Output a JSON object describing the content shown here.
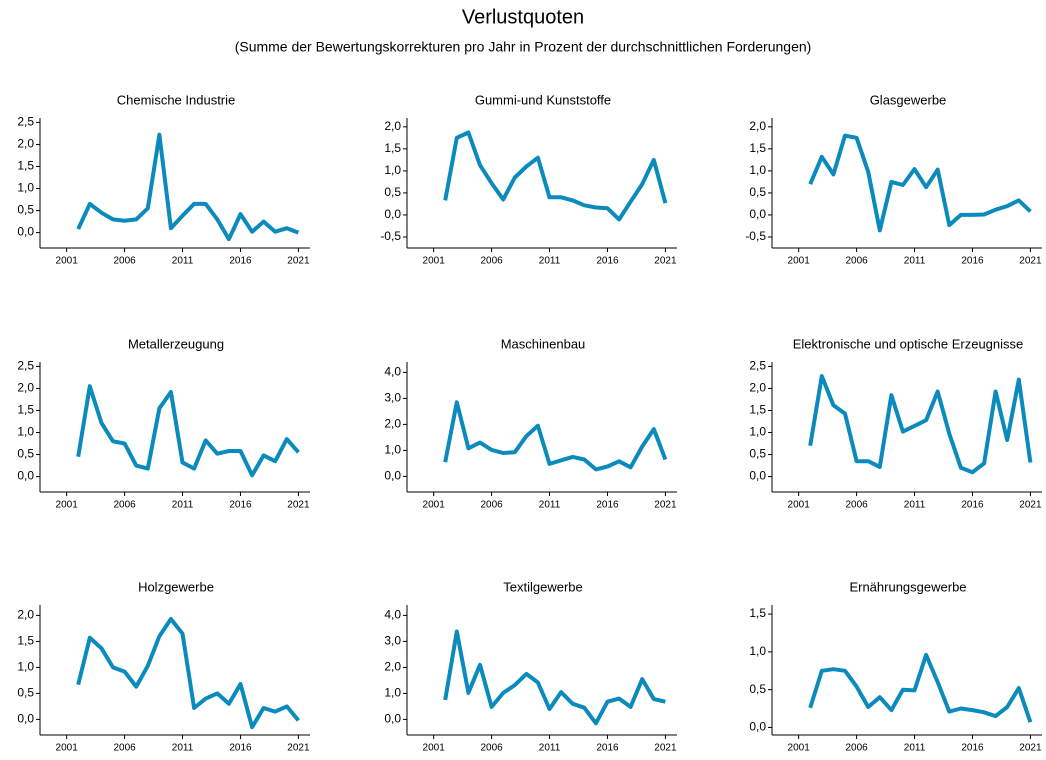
{
  "title": "Verlustquoten",
  "subtitle": "(Summe der Bewertungskorrekturen pro Jahr in Prozent der durchschnittlichen Forderungen)",
  "chart_data": [
    {
      "type": "line",
      "title": "Chemische Industrie",
      "color": "#0a8abd",
      "x": [
        2002,
        2003,
        2004,
        2005,
        2006,
        2007,
        2008,
        2009,
        2010,
        2011,
        2012,
        2013,
        2014,
        2015,
        2016,
        2017,
        2018,
        2019,
        2020,
        2021
      ],
      "values": [
        0.08,
        0.65,
        0.45,
        0.3,
        0.27,
        0.3,
        0.55,
        2.22,
        0.1,
        0.38,
        0.65,
        0.65,
        0.3,
        -0.15,
        0.42,
        0.02,
        0.25,
        0.02,
        0.1,
        0.0
      ],
      "xlim": [
        1998.7,
        2022.0
      ],
      "xticks": [
        2001,
        2006,
        2011,
        2016,
        2021
      ],
      "ylim": [
        -0.35,
        2.6
      ],
      "yticks": [
        {
          "value": 0,
          "label": "0,0"
        },
        {
          "value": 0.5,
          "label": "0,5"
        },
        {
          "value": 1,
          "label": "1,0"
        },
        {
          "value": 1.5,
          "label": "1,5"
        },
        {
          "value": 2,
          "label": "2,0"
        },
        {
          "value": 2.5,
          "label": "2,5"
        }
      ]
    },
    {
      "type": "line",
      "title": "Gummi-und Kunststoffe",
      "color": "#0a8abd",
      "x": [
        2002,
        2003,
        2004,
        2005,
        2006,
        2007,
        2008,
        2009,
        2010,
        2011,
        2012,
        2013,
        2014,
        2015,
        2016,
        2017,
        2018,
        2019,
        2020,
        2021
      ],
      "values": [
        0.33,
        1.75,
        1.87,
        1.13,
        0.72,
        0.35,
        0.85,
        1.1,
        1.3,
        0.4,
        0.4,
        0.33,
        0.22,
        0.17,
        0.15,
        -0.1,
        0.3,
        0.7,
        1.25,
        0.27
      ],
      "xlim": [
        1998.7,
        2022.0
      ],
      "xticks": [
        2001,
        2006,
        2011,
        2016,
        2021
      ],
      "ylim": [
        -0.75,
        2.2
      ],
      "yticks": [
        {
          "value": -0.5,
          "label": "-0,5"
        },
        {
          "value": 0,
          "label": "0,0"
        },
        {
          "value": 0.5,
          "label": "0,5"
        },
        {
          "value": 1,
          "label": "1,0"
        },
        {
          "value": 1.5,
          "label": "1,5"
        },
        {
          "value": 2,
          "label": "2,0"
        }
      ]
    },
    {
      "type": "line",
      "title": "Glasgewerbe",
      "color": "#0a8abd",
      "x": [
        2002,
        2003,
        2004,
        2005,
        2006,
        2007,
        2008,
        2009,
        2010,
        2011,
        2012,
        2013,
        2014,
        2015,
        2016,
        2017,
        2018,
        2019,
        2020,
        2021
      ],
      "values": [
        0.7,
        1.32,
        0.92,
        1.8,
        1.75,
        0.98,
        -0.35,
        0.75,
        0.68,
        1.04,
        0.63,
        1.03,
        -0.23,
        0.0,
        0.0,
        0.01,
        0.12,
        0.2,
        0.33,
        0.08
      ],
      "xlim": [
        1998.7,
        2022.0
      ],
      "xticks": [
        2001,
        2006,
        2011,
        2016,
        2021
      ],
      "ylim": [
        -0.75,
        2.2
      ],
      "yticks": [
        {
          "value": -0.5,
          "label": "-0,5"
        },
        {
          "value": 0,
          "label": "0,0"
        },
        {
          "value": 0.5,
          "label": "0,5"
        },
        {
          "value": 1,
          "label": "1,0"
        },
        {
          "value": 1.5,
          "label": "1,5"
        },
        {
          "value": 2,
          "label": "2,0"
        }
      ]
    },
    {
      "type": "line",
      "title": "Metallerzeugung",
      "color": "#0a8abd",
      "x": [
        2002,
        2003,
        2004,
        2005,
        2006,
        2007,
        2008,
        2009,
        2010,
        2011,
        2012,
        2013,
        2014,
        2015,
        2016,
        2017,
        2018,
        2019,
        2020,
        2021
      ],
      "values": [
        0.45,
        2.05,
        1.22,
        0.8,
        0.75,
        0.25,
        0.18,
        1.55,
        1.92,
        0.32,
        0.18,
        0.82,
        0.52,
        0.58,
        0.58,
        0.03,
        0.48,
        0.35,
        0.85,
        0.55
      ],
      "xlim": [
        1998.7,
        2022.0
      ],
      "xticks": [
        2001,
        2006,
        2011,
        2016,
        2021
      ],
      "ylim": [
        -0.35,
        2.6
      ],
      "yticks": [
        {
          "value": 0,
          "label": "0,0"
        },
        {
          "value": 0.5,
          "label": "0,5"
        },
        {
          "value": 1,
          "label": "1,0"
        },
        {
          "value": 1.5,
          "label": "1,5"
        },
        {
          "value": 2,
          "label": "2,0"
        },
        {
          "value": 2.5,
          "label": "2,5"
        }
      ]
    },
    {
      "type": "line",
      "title": "Maschinenbau",
      "color": "#0a8abd",
      "x": [
        2002,
        2003,
        2004,
        2005,
        2006,
        2007,
        2008,
        2009,
        2010,
        2011,
        2012,
        2013,
        2014,
        2015,
        2016,
        2017,
        2018,
        2019,
        2020,
        2021
      ],
      "values": [
        0.55,
        2.85,
        1.08,
        1.3,
        1.02,
        0.9,
        0.93,
        1.55,
        1.95,
        0.48,
        0.62,
        0.75,
        0.65,
        0.27,
        0.38,
        0.58,
        0.35,
        1.15,
        1.82,
        0.65
      ],
      "xlim": [
        1998.7,
        2022.0
      ],
      "xticks": [
        2001,
        2006,
        2011,
        2016,
        2021
      ],
      "ylim": [
        -0.6,
        4.4
      ],
      "yticks": [
        {
          "value": 0,
          "label": "0,0"
        },
        {
          "value": 1,
          "label": "1,0"
        },
        {
          "value": 2,
          "label": "2,0"
        },
        {
          "value": 3,
          "label": "3,0"
        },
        {
          "value": 4,
          "label": "4,0"
        }
      ]
    },
    {
      "type": "line",
      "title": "Elektronische und optische Erzeugnisse",
      "color": "#0a8abd",
      "x": [
        2002,
        2003,
        2004,
        2005,
        2006,
        2007,
        2008,
        2009,
        2010,
        2011,
        2012,
        2013,
        2014,
        2015,
        2016,
        2017,
        2018,
        2019,
        2020,
        2021
      ],
      "values": [
        0.7,
        2.28,
        1.62,
        1.43,
        0.35,
        0.35,
        0.22,
        1.85,
        1.02,
        1.15,
        1.28,
        1.93,
        0.97,
        0.2,
        0.1,
        0.3,
        1.93,
        0.83,
        2.2,
        0.32
      ],
      "xlim": [
        1998.7,
        2022.0
      ],
      "xticks": [
        2001,
        2006,
        2011,
        2016,
        2021
      ],
      "ylim": [
        -0.35,
        2.6
      ],
      "yticks": [
        {
          "value": 0,
          "label": "0,0"
        },
        {
          "value": 0.5,
          "label": "0,5"
        },
        {
          "value": 1,
          "label": "1,0"
        },
        {
          "value": 1.5,
          "label": "1,5"
        },
        {
          "value": 2,
          "label": "2,0"
        },
        {
          "value": 2.5,
          "label": "2,5"
        }
      ]
    },
    {
      "type": "line",
      "title": "Holzgewerbe",
      "color": "#0a8abd",
      "x": [
        2002,
        2003,
        2004,
        2005,
        2006,
        2007,
        2008,
        2009,
        2010,
        2011,
        2012,
        2013,
        2014,
        2015,
        2016,
        2017,
        2018,
        2019,
        2020,
        2021
      ],
      "values": [
        0.67,
        1.57,
        1.37,
        1.0,
        0.92,
        0.63,
        1.03,
        1.6,
        1.93,
        1.65,
        0.22,
        0.4,
        0.5,
        0.3,
        0.68,
        -0.15,
        0.22,
        0.15,
        0.25,
        -0.02
      ],
      "xlim": [
        1998.7,
        2022.0
      ],
      "xticks": [
        2001,
        2006,
        2011,
        2016,
        2021
      ],
      "ylim": [
        -0.3,
        2.2
      ],
      "yticks": [
        {
          "value": 0,
          "label": "0,0"
        },
        {
          "value": 0.5,
          "label": "0,5"
        },
        {
          "value": 1,
          "label": "1,0"
        },
        {
          "value": 1.5,
          "label": "1,5"
        },
        {
          "value": 2,
          "label": "2,0"
        }
      ]
    },
    {
      "type": "line",
      "title": "Textilgewerbe",
      "color": "#0a8abd",
      "x": [
        2002,
        2003,
        2004,
        2005,
        2006,
        2007,
        2008,
        2009,
        2010,
        2011,
        2012,
        2013,
        2014,
        2015,
        2016,
        2017,
        2018,
        2019,
        2020,
        2021
      ],
      "values": [
        0.75,
        3.38,
        1.02,
        2.1,
        0.48,
        1.02,
        1.32,
        1.75,
        1.42,
        0.4,
        1.05,
        0.6,
        0.45,
        -0.15,
        0.68,
        0.8,
        0.48,
        1.55,
        0.78,
        0.68
      ],
      "xlim": [
        1998.7,
        2022.0
      ],
      "xticks": [
        2001,
        2006,
        2011,
        2016,
        2021
      ],
      "ylim": [
        -0.6,
        4.4
      ],
      "yticks": [
        {
          "value": 0,
          "label": "0,0"
        },
        {
          "value": 1,
          "label": "1,0"
        },
        {
          "value": 2,
          "label": "2,0"
        },
        {
          "value": 3,
          "label": "3,0"
        },
        {
          "value": 4,
          "label": "4,0"
        }
      ]
    },
    {
      "type": "line",
      "title": "Ernährungsgewerbe",
      "color": "#0a8abd",
      "x": [
        2002,
        2003,
        2004,
        2005,
        2006,
        2007,
        2008,
        2009,
        2010,
        2011,
        2012,
        2013,
        2014,
        2015,
        2016,
        2017,
        2018,
        2019,
        2020,
        2021
      ],
      "values": [
        0.26,
        0.75,
        0.77,
        0.75,
        0.54,
        0.27,
        0.4,
        0.23,
        0.5,
        0.49,
        0.96,
        0.6,
        0.21,
        0.25,
        0.23,
        0.2,
        0.15,
        0.27,
        0.52,
        0.07
      ],
      "xlim": [
        1998.7,
        2022.0
      ],
      "xticks": [
        2001,
        2006,
        2011,
        2016,
        2021
      ],
      "ylim": [
        -0.1,
        1.62
      ],
      "yticks": [
        {
          "value": 0,
          "label": "0,0"
        },
        {
          "value": 0.5,
          "label": "0,5"
        },
        {
          "value": 1,
          "label": "1,0"
        },
        {
          "value": 1.5,
          "label": "1,5"
        }
      ]
    }
  ]
}
